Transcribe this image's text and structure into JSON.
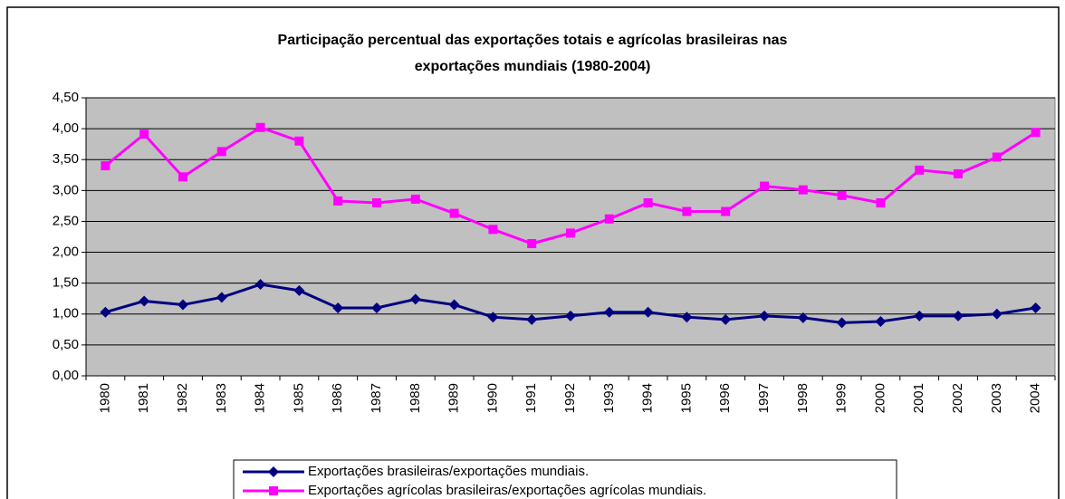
{
  "chart_data": {
    "type": "line",
    "title": [
      "Participação percentual das exportações totais e agrícolas brasileiras nas",
      "exportações mundiais (1980-2004)"
    ],
    "categories": [
      "1980",
      "1981",
      "1982",
      "1983",
      "1984",
      "1985",
      "1986",
      "1987",
      "1988",
      "1989",
      "1990",
      "1991",
      "1992",
      "1993",
      "1994",
      "1995",
      "1996",
      "1997",
      "1998",
      "1999",
      "2000",
      "2001",
      "2002",
      "2003",
      "2004"
    ],
    "series": [
      {
        "name": "Exportações brasileiras/exportações mundiais.",
        "color": "#000080",
        "marker": "diamond",
        "values": [
          1.03,
          1.21,
          1.15,
          1.27,
          1.48,
          1.38,
          1.1,
          1.1,
          1.24,
          1.15,
          0.95,
          0.91,
          0.97,
          1.03,
          1.03,
          0.95,
          0.91,
          0.97,
          0.94,
          0.86,
          0.88,
          0.97,
          0.97,
          1.0,
          1.1
        ]
      },
      {
        "name": "Exportações agrícolas brasileiras/exportações agrícolas mundiais.",
        "color": "#ff00ff",
        "marker": "square",
        "values": [
          3.4,
          3.91,
          3.22,
          3.63,
          4.02,
          3.8,
          2.83,
          2.8,
          2.86,
          2.63,
          2.37,
          2.14,
          2.31,
          2.54,
          2.8,
          2.66,
          2.66,
          3.07,
          3.01,
          2.92,
          2.8,
          3.33,
          3.27,
          3.54,
          3.94
        ]
      }
    ],
    "ylim": [
      0,
      4.5
    ],
    "yticks": [
      {
        "value": 0,
        "label": "0,00"
      },
      {
        "value": 0.5,
        "label": "0,50"
      },
      {
        "value": 1,
        "label": "1,00"
      },
      {
        "value": 1.5,
        "label": "1,50"
      },
      {
        "value": 2,
        "label": "2,00"
      },
      {
        "value": 2.5,
        "label": "2,50"
      },
      {
        "value": 3,
        "label": "3,00"
      },
      {
        "value": 3.5,
        "label": "3,50"
      },
      {
        "value": 4,
        "label": "4,00"
      },
      {
        "value": 4.5,
        "label": "4,50"
      }
    ],
    "grid": true,
    "plot_background": "#c0c0c0",
    "legend": "bottom"
  }
}
